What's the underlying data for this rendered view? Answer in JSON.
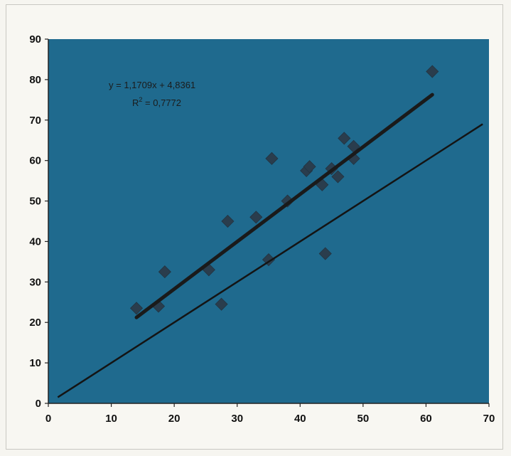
{
  "chart_data": {
    "type": "scatter",
    "title": "",
    "xlabel": "",
    "ylabel": "",
    "xlim": [
      0,
      70
    ],
    "ylim": [
      0,
      90
    ],
    "x_ticks": [
      0,
      10,
      20,
      30,
      40,
      50,
      60,
      70
    ],
    "y_ticks": [
      0,
      10,
      20,
      30,
      40,
      50,
      60,
      70,
      80,
      90
    ],
    "grid": false,
    "legend": "none",
    "colors": {
      "plot_background": "#1f6a8e",
      "marker": "#2a3d4d",
      "regression_line": "#1a1a1a",
      "identity_line": "#141414"
    },
    "series": [
      {
        "values": [
          {
            "x": 14,
            "y": 23.5
          },
          {
            "x": 17.5,
            "y": 24
          },
          {
            "x": 18.5,
            "y": 32.5
          },
          {
            "x": 25.5,
            "y": 33
          },
          {
            "x": 27.5,
            "y": 24.5
          },
          {
            "x": 28.5,
            "y": 45
          },
          {
            "x": 33,
            "y": 46
          },
          {
            "x": 35,
            "y": 35.5
          },
          {
            "x": 35.5,
            "y": 60.5
          },
          {
            "x": 38,
            "y": 50
          },
          {
            "x": 41,
            "y": 57.5
          },
          {
            "x": 41.5,
            "y": 58.5
          },
          {
            "x": 43.5,
            "y": 54
          },
          {
            "x": 44,
            "y": 37
          },
          {
            "x": 45,
            "y": 58
          },
          {
            "x": 46,
            "y": 56
          },
          {
            "x": 47,
            "y": 65.5
          },
          {
            "x": 48.5,
            "y": 63.5
          },
          {
            "x": 48.5,
            "y": 60.5
          },
          {
            "x": 61,
            "y": 82
          }
        ]
      }
    ],
    "trendline": {
      "slope": 1.1709,
      "intercept": 4.8361,
      "x_range": [
        14,
        61
      ],
      "equation_text": "y = 1,1709x + 4,8361",
      "r2_label": "R",
      "r2_exponent": "2",
      "r2_value": " = 0,7772"
    },
    "identity_line": {
      "x_range": [
        1.5,
        69
      ],
      "slope": 1,
      "intercept": 0
    }
  }
}
